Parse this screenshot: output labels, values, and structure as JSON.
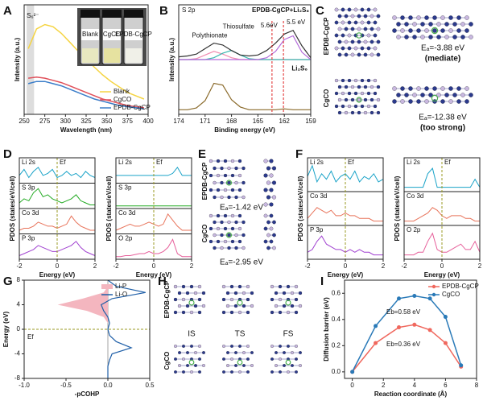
{
  "panels": {
    "letters": [
      "A",
      "B",
      "C",
      "D",
      "E",
      "F",
      "G",
      "H",
      "I"
    ],
    "C": {
      "top": "EPDB-CgCP",
      "bottom": "CgCO",
      "ea_top": "Eₐ=-3.88 eV",
      "note_top": "(mediate)",
      "ea_bottom": "Eₐ=-12.38 eV",
      "note_bottom": "(too strong)"
    },
    "E": {
      "top": "EPDB-CgCP",
      "bottom": "CgCO",
      "ea_top": "Eₐ=-1.42 eV",
      "ea_bottom": "Eₐ=-2.95 eV"
    },
    "H": {
      "top": "EPDB-CgCP",
      "bottom": "CgCO",
      "states": [
        "IS",
        "TS",
        "FS"
      ]
    }
  },
  "chart_data": [
    {
      "type": "line",
      "xlabel": "Wavelength (nm)",
      "ylabel": "Intensity (a.u.)",
      "annotation": "S₆²⁻",
      "band": [
        253,
        262
      ],
      "inset_labels": [
        "Blank",
        "CgCO",
        "EPDB-CgCP"
      ],
      "legend": "lower right",
      "x": [
        255,
        265,
        275,
        285,
        295,
        305,
        315,
        325,
        335,
        345,
        355,
        365,
        375,
        385,
        395
      ],
      "xlim": [
        250,
        400
      ],
      "xticks": [
        250,
        275,
        300,
        325,
        350,
        375,
        400
      ],
      "ylim": [
        0,
        1
      ],
      "series": [
        {
          "name": "Blank",
          "color": "#f5d442",
          "values": [
            0.6,
            0.78,
            0.82,
            0.8,
            0.74,
            0.66,
            0.58,
            0.5,
            0.43,
            0.36,
            0.3,
            0.25,
            0.2,
            0.17,
            0.14
          ]
        },
        {
          "name": "CgCO",
          "color": "#e0505a",
          "values": [
            0.33,
            0.34,
            0.33,
            0.31,
            0.29,
            0.26,
            0.23,
            0.2,
            0.17,
            0.14,
            0.12,
            0.1,
            0.08,
            0.07,
            0.06
          ]
        },
        {
          "name": "EPDB-CgCP",
          "color": "#3a7dc9",
          "values": [
            0.28,
            0.3,
            0.3,
            0.28,
            0.26,
            0.23,
            0.2,
            0.17,
            0.14,
            0.12,
            0.1,
            0.08,
            0.07,
            0.06,
            0.05
          ]
        }
      ]
    },
    {
      "type": "xps",
      "xlabel": "Binding energy (eV)",
      "ylabel": "Intensity (a.u.)",
      "label": "S 2p",
      "top_label": "EPDB-CgCP+Li₂S₆",
      "bottom_label": "Li₂S₆",
      "shift_lines": [
        163.4,
        162.1
      ],
      "shift_labels": [
        "5.6eV",
        "5.5 eV"
      ],
      "x": [
        174,
        173,
        172,
        171,
        170,
        169,
        168,
        167,
        166,
        165,
        164,
        163,
        162,
        161,
        160,
        159
      ],
      "xlim": [
        174,
        159
      ],
      "xticks": [
        174,
        171,
        168,
        165,
        162,
        159
      ],
      "ylim": [
        0,
        12
      ],
      "series": [
        {
          "name": "Polythionate",
          "color": "#f08cb0",
          "values": [
            6,
            6,
            6.1,
            6.5,
            6.9,
            6.6,
            6.2,
            6,
            6,
            6,
            6,
            6,
            6,
            6,
            6,
            6
          ]
        },
        {
          "name": "Thiosulfate",
          "color": "#3bb8b0",
          "values": [
            6,
            6,
            6,
            6,
            6.2,
            6.7,
            7.0,
            6.5,
            6.1,
            6,
            6,
            6,
            6,
            6,
            6,
            6
          ]
        },
        {
          "color": "#b36ad9",
          "values": [
            6,
            6,
            6,
            6,
            6,
            6,
            6,
            6,
            6,
            6,
            6.2,
            6.9,
            8.2,
            8.6,
            6.8,
            6
          ]
        },
        {
          "color": "#333333",
          "values": [
            6.3,
            6.4,
            6.6,
            7.2,
            7.8,
            7.6,
            7.0,
            6.5,
            6.4,
            6.5,
            7.0,
            7.8,
            8.8,
            9.2,
            7.5,
            6.2
          ]
        },
        {
          "color": "#8a6a2a",
          "values": [
            0.5,
            0.5,
            0.7,
            1.5,
            3.4,
            3.2,
            1.6,
            0.8,
            0.5,
            0.5,
            0.5,
            0.5,
            0.6,
            0.5,
            0.5,
            0.5
          ]
        }
      ]
    },
    {
      "type": "pdos",
      "xlabel": "Energy (eV)",
      "ylabel": "PDOS (states/eV/cell)",
      "fermi_label": "Ef",
      "fermi": 0,
      "x": [
        -2,
        -1.75,
        -1.5,
        -1.25,
        -1,
        -0.75,
        -0.5,
        -0.25,
        0,
        0.25,
        0.5,
        0.75,
        1,
        1.25,
        1.5,
        1.75,
        2
      ],
      "xlim": [
        -2,
        2
      ],
      "xticks": [
        -2,
        0,
        2
      ],
      "ylim": [
        0,
        1
      ],
      "series": [
        {
          "name": "Li 2s",
          "color": "#1aa3c8",
          "values": [
            0.3,
            0.6,
            0.2,
            0.5,
            0.7,
            0.3,
            0.4,
            0.6,
            0.2,
            0.3,
            0.5,
            0.3,
            0.4,
            0.2,
            0.5,
            0.3,
            0.2
          ]
        },
        {
          "name": "S 3p",
          "color": "#22aa22",
          "values": [
            0.2,
            0.4,
            0.3,
            0.7,
            0.9,
            0.5,
            0.6,
            0.4,
            0.3,
            0.2,
            0.3,
            0.4,
            0.6,
            0.3,
            0.2,
            0.1,
            0.1
          ]
        },
        {
          "name": "Co 3d",
          "color": "#e8735a",
          "values": [
            0.1,
            0.2,
            0.2,
            0.3,
            0.5,
            0.4,
            0.3,
            0.3,
            0.2,
            0.3,
            0.4,
            0.8,
            0.5,
            0.3,
            0.2,
            0.1,
            0.1
          ]
        },
        {
          "name": "P 3p",
          "color": "#a040d0",
          "values": [
            0.1,
            0.2,
            0.3,
            0.4,
            0.6,
            0.5,
            0.4,
            0.3,
            0.3,
            0.4,
            0.5,
            0.6,
            0.8,
            0.5,
            0.3,
            0.2,
            0.1
          ]
        }
      ]
    },
    {
      "type": "pdos",
      "xlabel": "Energy (eV)",
      "ylabel": "PDOS (states/eV/cell)",
      "fermi_label": "Ef",
      "fermi": 0,
      "x": [
        -2,
        -1.75,
        -1.5,
        -1.25,
        -1,
        -0.75,
        -0.5,
        -0.25,
        0,
        0.25,
        0.5,
        0.75,
        1,
        1.25,
        1.5,
        1.75,
        2
      ],
      "xlim": [
        -2,
        2
      ],
      "xticks": [
        -2,
        0,
        2
      ],
      "ylim": [
        0,
        1
      ],
      "series": [
        {
          "name": "Li 2s",
          "color": "#1aa3c8",
          "values": [
            0.3,
            0.3,
            0.3,
            0.3,
            0.3,
            0.3,
            0.3,
            0.3,
            0.3,
            0.3,
            0.3,
            0.3,
            0.4,
            0.7,
            0.3,
            0.3,
            0.3
          ]
        },
        {
          "name": "S 3p",
          "color": "#22aa22",
          "values": [
            0.05,
            0.05,
            0.05,
            0.05,
            0.05,
            0.05,
            0.05,
            0.05,
            0.05,
            0.05,
            0.05,
            0.05,
            0.05,
            0.05,
            0.05,
            0.05,
            0.05
          ]
        },
        {
          "name": "Co 3d",
          "color": "#e8735a",
          "values": [
            0.1,
            0.2,
            0.3,
            0.4,
            0.3,
            0.3,
            0.4,
            0.5,
            0.4,
            0.3,
            0.4,
            0.9,
            0.6,
            0.3,
            0.1,
            0.1,
            0.1
          ]
        },
        {
          "name": "O 2p",
          "color": "#e65f9a",
          "values": [
            0.05,
            0.05,
            0.1,
            0.1,
            0.15,
            0.2,
            0.2,
            0.3,
            0.2,
            0.2,
            0.3,
            0.5,
            0.9,
            0.2,
            0.05,
            0.05,
            0.05
          ]
        }
      ]
    },
    {
      "type": "pdos",
      "xlabel": "Energy (eV)",
      "ylabel": "PDOS (states/eV/cell)",
      "fermi_label": "Ef",
      "fermi": 0,
      "x": [
        -2,
        -1.75,
        -1.5,
        -1.25,
        -1,
        -0.75,
        -0.5,
        -0.25,
        0,
        0.25,
        0.5,
        0.75,
        1,
        1.25,
        1.5,
        1.75,
        2
      ],
      "xlim": [
        -2,
        2
      ],
      "xticks": [
        -2,
        0,
        2
      ],
      "ylim": [
        0,
        1
      ],
      "series": [
        {
          "name": "Li 2s",
          "color": "#1aa3c8",
          "values": [
            0.5,
            0.9,
            0.3,
            0.6,
            0.4,
            0.7,
            0.3,
            0.5,
            0.6,
            0.4,
            0.7,
            0.3,
            0.5,
            0.4,
            0.6,
            0.3,
            0.4
          ]
        },
        {
          "name": "Co 3d",
          "color": "#e8735a",
          "values": [
            0.2,
            0.4,
            0.6,
            0.5,
            0.4,
            0.5,
            0.3,
            0.3,
            0.4,
            0.3,
            0.3,
            0.2,
            0.2,
            0.2,
            0.1,
            0.1,
            0.1
          ]
        },
        {
          "name": "P 3p",
          "color": "#a040d0",
          "values": [
            0.2,
            0.3,
            0.6,
            0.8,
            0.5,
            0.4,
            0.3,
            0.3,
            0.2,
            0.3,
            0.2,
            0.3,
            0.2,
            0.2,
            0.1,
            0.1,
            0.1
          ]
        }
      ]
    },
    {
      "type": "pdos",
      "xlabel": "Energy (eV)",
      "ylabel": "PDOS (states/eV/cell)",
      "fermi_label": "Ef",
      "fermi": 0,
      "x": [
        -2,
        -1.75,
        -1.5,
        -1.25,
        -1,
        -0.75,
        -0.5,
        -0.25,
        0,
        0.25,
        0.5,
        0.75,
        1,
        1.25,
        1.5,
        1.75,
        2
      ],
      "xlim": [
        -2,
        2
      ],
      "xticks": [
        -2,
        0,
        2
      ],
      "ylim": [
        0,
        1
      ],
      "series": [
        {
          "name": "Li 2s",
          "color": "#1aa3c8",
          "values": [
            0.1,
            0.1,
            0.1,
            0.1,
            0.1,
            0.6,
            0.8,
            0.1,
            0.1,
            0.1,
            0.1,
            0.1,
            0.1,
            0.1,
            0.1,
            0.4,
            0.1
          ]
        },
        {
          "name": "Co 3d",
          "color": "#e8735a",
          "values": [
            0.1,
            0.1,
            0.1,
            0.2,
            0.3,
            0.4,
            0.6,
            0.5,
            0.3,
            0.2,
            0.3,
            0.3,
            0.3,
            0.2,
            0.2,
            0.1,
            0.1
          ]
        },
        {
          "name": "O 2p",
          "color": "#e65f9a",
          "values": [
            0.1,
            0.1,
            0.1,
            0.2,
            0.2,
            0.6,
            0.9,
            0.3,
            0.2,
            0.2,
            0.3,
            0.4,
            0.5,
            0.3,
            0.3,
            0.6,
            0.2
          ]
        }
      ]
    },
    {
      "type": "cohp",
      "xlabel": "-pCOHP",
      "ylabel": "Energy (eV)",
      "fermi_label": "Ef",
      "fermi": 0,
      "legend": "upper right",
      "y": [
        -8,
        -7,
        -6,
        -5,
        -4,
        -3,
        -2,
        -1,
        0,
        1,
        2,
        3,
        4,
        5,
        6,
        7,
        8
      ],
      "xlim": [
        -1,
        0.5
      ],
      "xticks": [
        {
          "value": -1,
          "label": "-1.0"
        },
        -0.5,
        {
          "value": 0,
          "label": "0.0"
        },
        0.5
      ],
      "ylim": [
        -8,
        8
      ],
      "yticks": [
        -8,
        -4,
        0,
        4,
        8
      ],
      "series": [
        {
          "name": "Li-P",
          "color": "#f4b6bf",
          "fill": true,
          "values": [
            0,
            0,
            0,
            0,
            0,
            0,
            0,
            0,
            0,
            0,
            -0.05,
            -0.25,
            -0.6,
            -0.3,
            -0.05,
            0,
            0
          ]
        },
        {
          "name": "Li-O",
          "color": "#1f5fa8",
          "values": [
            0,
            0,
            0,
            0.02,
            0.05,
            0.28,
            0.1,
            0.02,
            0,
            0.02,
            0,
            -0.05,
            -0.08,
            0.05,
            0.45,
            0.1,
            0
          ]
        }
      ]
    },
    {
      "type": "line",
      "xlabel": "Reaction coordinate (Å)",
      "ylabel": "Diffusion barrier (eV)",
      "legend": "upper right",
      "markers": true,
      "annotations": [
        "Eb=0.58 eV",
        "Eb=0.36 eV"
      ],
      "x": [
        0,
        1.5,
        3,
        4,
        5,
        6,
        7
      ],
      "xlim": [
        -0.5,
        8
      ],
      "xticks": [
        0,
        2,
        4,
        6,
        8
      ],
      "ylim": [
        -0.05,
        0.7
      ],
      "yticks": [
        {
          "value": 0,
          "label": "0.0"
        },
        0.2,
        0.4,
        0.6
      ],
      "series": [
        {
          "name": "EPDB-CgCP",
          "color": "#f0685e",
          "values": [
            0,
            0.22,
            0.34,
            0.36,
            0.32,
            0.22,
            0.04
          ]
        },
        {
          "name": "CgCO",
          "color": "#2a7ab8",
          "values": [
            0,
            0.35,
            0.56,
            0.58,
            0.56,
            0.42,
            0.05
          ]
        }
      ]
    }
  ]
}
